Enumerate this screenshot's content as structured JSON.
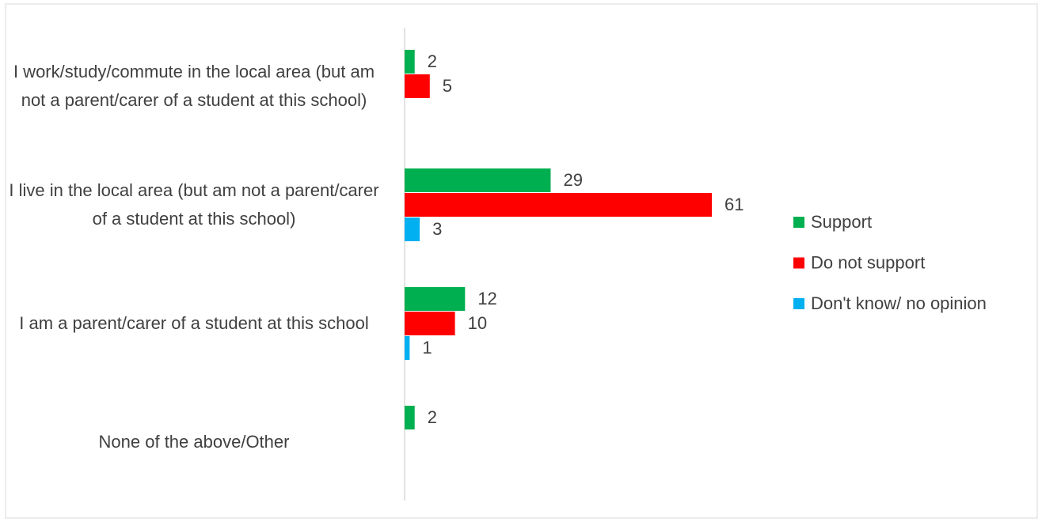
{
  "chart_data": {
    "type": "bar",
    "orientation": "horizontal",
    "categories": [
      "I work/study/commute in the local area (but am not a parent/carer of a student at this school)",
      "I live in the local area (but am not a parent/carer of a student at this school)",
      "I am a parent/carer of a student at this school",
      "None of the above/Other"
    ],
    "series": [
      {
        "name": "Support",
        "color": "#00b050",
        "values": [
          2,
          29,
          12,
          2
        ]
      },
      {
        "name": "Do not support",
        "color": "#ff0000",
        "values": [
          5,
          61,
          10,
          null
        ]
      },
      {
        "name": "Don't know/ no opinion",
        "color": "#00b0f0",
        "values": [
          null,
          3,
          1,
          null
        ]
      }
    ],
    "legend": "right"
  }
}
